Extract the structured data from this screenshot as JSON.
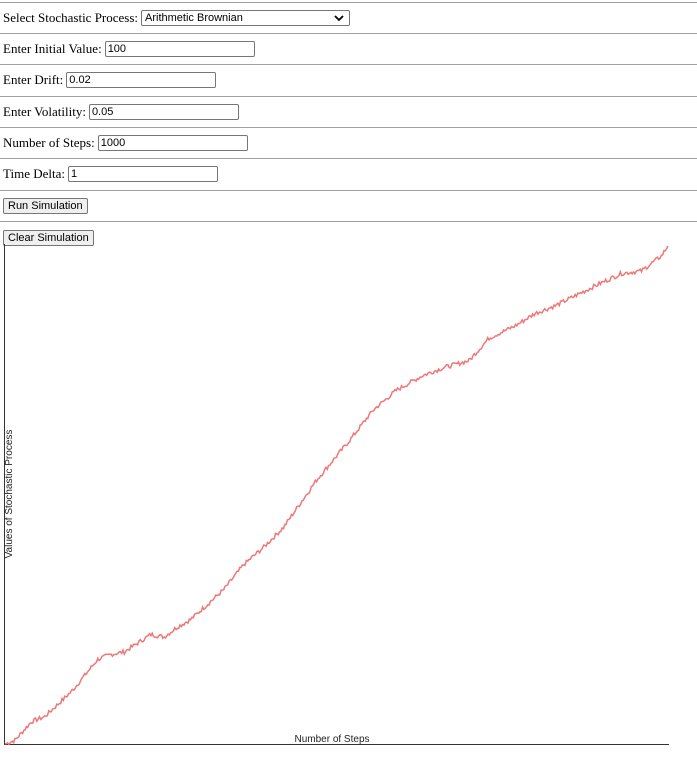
{
  "form": {
    "process_label": "Select Stochastic Process:",
    "process_value": "Arithmetic Brownian",
    "initial_label": "Enter Initial Value:",
    "initial_value": "100",
    "drift_label": "Enter Drift:",
    "drift_value": "0.02",
    "volatility_label": "Enter Volatility:",
    "volatility_value": "0.05",
    "steps_label": "Number of Steps:",
    "steps_value": "1000",
    "dt_label": "Time Delta:",
    "dt_value": "1"
  },
  "buttons": {
    "run_label": "Run Simulation",
    "clear_label": "Clear Simulation"
  },
  "chart_data": {
    "type": "line",
    "xlabel": "Number of Steps",
    "ylabel": "Values of Stochastic Process",
    "xlim": [
      0,
      1000
    ],
    "ylim": [
      100,
      120
    ],
    "grid": false,
    "color": "#ee7777",
    "series": [
      {
        "x": [
          0,
          15,
          40,
          60,
          100,
          140,
          160,
          180,
          220,
          240,
          260,
          280,
          330,
          360,
          390,
          420,
          470,
          520,
          555,
          590,
          630,
          660,
          700,
          730,
          770,
          800,
          830,
          860,
          890,
          930,
          960,
          990,
          1000
        ],
        "values": [
          100.0,
          100.15,
          100.9,
          101.1,
          102.1,
          103.4,
          103.6,
          103.7,
          104.4,
          104.3,
          104.7,
          105.0,
          106.2,
          107.2,
          107.9,
          108.7,
          110.6,
          112.2,
          113.4,
          114.2,
          114.8,
          115.1,
          115.4,
          116.3,
          116.8,
          117.3,
          117.6,
          118.0,
          118.4,
          118.9,
          119.0,
          119.6,
          120.0
        ]
      }
    ]
  }
}
